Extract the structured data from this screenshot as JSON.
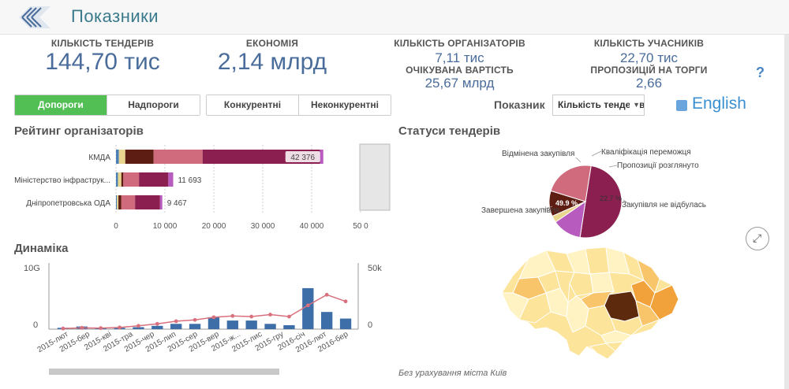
{
  "app": {
    "title": "Показники"
  },
  "kpis": {
    "tenders_count": {
      "label": "КІЛЬКІСТЬ ТЕНДЕРІВ",
      "value": "144,70 тис"
    },
    "economy": {
      "label": "ЕКОНОМІЯ",
      "value": "2,14 млрд"
    },
    "organizers_count": {
      "label": "КІЛЬКІСТЬ ОРГАНІЗАТОРІВ",
      "value": "7,11 тис"
    },
    "expected_value": {
      "label": "ОЧІКУВАНА ВАРТІСТЬ",
      "value": "25,67 млрд"
    },
    "participants_count": {
      "label": "КІЛЬКІСТЬ УЧАСНИКІВ",
      "value": "22,70 тис"
    },
    "bids_per_tender": {
      "label": "ПРОПОЗИЦІЙ НА ТОРГИ",
      "value": "2,66"
    }
  },
  "help_label": "?",
  "threshold_tabs": [
    {
      "label": "Допороги",
      "active": true
    },
    {
      "label": "Надпороги",
      "active": false
    }
  ],
  "competition_tabs": [
    {
      "label": "Конкурентні",
      "active": false
    },
    {
      "label": "Неконкурентні",
      "active": false
    }
  ],
  "indicator": {
    "label": "Показник",
    "selected": "Кількість тендерів"
  },
  "language": {
    "label": "English"
  },
  "colors": {
    "accent_green": "#52bf55",
    "kpi_blue": "#4a6c9a",
    "bar_series": [
      "#4c7fb5",
      "#e8d68f",
      "#5e1d12",
      "#cf6b7c",
      "#8b2050",
      "#b75bbf"
    ],
    "map_palette": [
      "#fff3c4",
      "#fde49b",
      "#f9c56b",
      "#f2a23a",
      "#5e2a0e"
    ]
  },
  "ranking": {
    "title": "Рейтинг організаторів",
    "rows": [
      {
        "label": "КМДА",
        "total_label": "42 376",
        "segments": [
          600,
          1300,
          5800,
          10000,
          24000,
          676
        ]
      },
      {
        "label": "Міністерство інфраструк...",
        "total_label": "11 693",
        "segments": [
          400,
          700,
          400,
          3200,
          6000,
          993
        ]
      },
      {
        "label": "Дніпропетровська ОДА",
        "total_label": "9 467",
        "segments": [
          200,
          300,
          600,
          2800,
          5100,
          467
        ]
      }
    ],
    "axis_ticks": [
      "0",
      "10 000",
      "20 000",
      "30 000",
      "40 000",
      "50 0"
    ],
    "xmax": 50000
  },
  "status_chart": {
    "title": "Статуси тендерів",
    "center_slice_label": "49.9 %",
    "slice_label_2": "22.7 %",
    "labels": [
      "Відмінена закупівля",
      "Кваліфікація переможця",
      "Пропозиції розглянуто",
      "Закупівля не відбулась",
      "Завершена закупівля"
    ]
  },
  "chart_data": [
    {
      "type": "bar",
      "title": "Рейтинг організаторів",
      "categories": [
        "КМДА",
        "Міністерство інфраструк...",
        "Дніпропетровська ОДА"
      ],
      "values": [
        42376,
        11693,
        9467
      ],
      "xlim": [
        0,
        50000
      ]
    },
    {
      "type": "pie",
      "title": "Статуси тендерів",
      "labels": [
        "Завершена закупівля",
        "Закупівля не відбулась",
        "Пропозиції розглянуто",
        "Кваліфікація переможця",
        "Відмінена закупівля"
      ],
      "values": [
        49.9,
        22.7,
        11.4,
        3.0,
        13.0
      ],
      "colors": [
        "#8b2050",
        "#cf6b7c",
        "#5e1d12",
        "#e8d68f",
        "#b75bbf"
      ]
    },
    {
      "type": "bar",
      "title": "Динаміка",
      "categories": [
        "2015-лют",
        "2015-бер",
        "2015-кві",
        "2015-тра",
        "2015-тра",
        "2015-чер",
        "2015-лип",
        "2015-лип",
        "2015-сер",
        "2015-вер",
        "2015-ж...",
        "2015-лис",
        "2015-гру",
        "2016-січ",
        "2016-лют",
        "2016-бер"
      ],
      "series": [
        {
          "type": "bar",
          "axis": "left",
          "values": [
            0.2,
            0.4,
            0.2,
            0.2,
            0.3,
            0.5,
            0.8,
            0.8,
            1.8,
            1.3,
            1.3,
            0.8,
            0.6,
            6.2,
            2.6,
            1.6
          ]
        },
        {
          "type": "line",
          "axis": "right",
          "values": [
            500,
            1000,
            800,
            1300,
            2500,
            4000,
            6000,
            7000,
            9000,
            10000,
            9500,
            11000,
            9500,
            18000,
            26000,
            21000
          ]
        }
      ],
      "left_axis_labels": [
        "10G",
        "0"
      ],
      "right_axis_labels": [
        "50k",
        "0"
      ],
      "ylim_left": [
        0,
        10
      ],
      "ylim_right": [
        0,
        50000
      ]
    }
  ],
  "dynamics": {
    "title": "Динаміка",
    "left_top": "10G",
    "left_zero": "0",
    "right_top": "50k",
    "right_zero": "0",
    "x_labels": [
      "2015-лют",
      "2015-бер",
      "2015-кві",
      "2015-тра",
      "2015-чер",
      "2015-лип",
      "2015-сер",
      "2015-вер",
      "2015-ж...",
      "2015-лис",
      "2015-гру",
      "2016-січ",
      "2016-лют",
      "2016-бер"
    ]
  },
  "map": {
    "note": "Без урахування міста Київ"
  }
}
